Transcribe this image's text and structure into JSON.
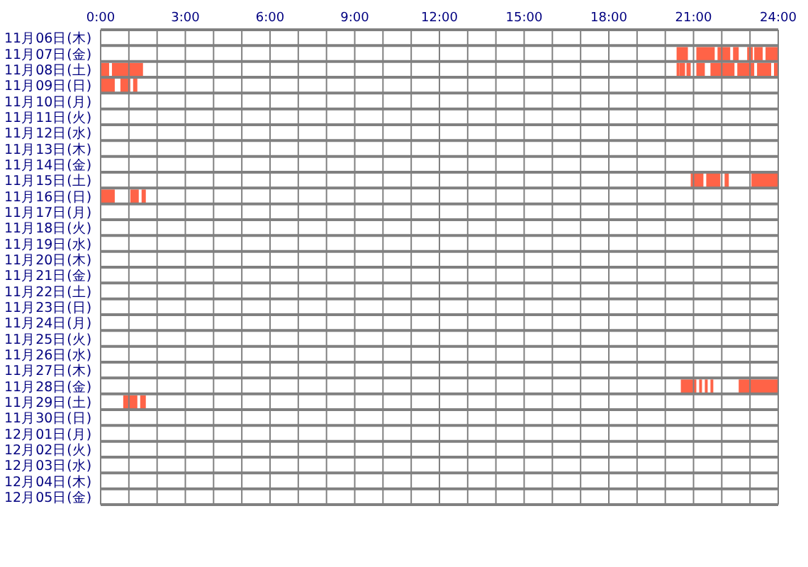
{
  "chart_data": {
    "type": "bar",
    "orientation": "horizontal",
    "grid": true,
    "categories": [
      "11月06日(木)",
      "11月07日(金)",
      "11月08日(土)",
      "11月09日(日)",
      "11月10日(月)",
      "11月11日(火)",
      "11月12日(水)",
      "11月13日(木)",
      "11月14日(金)",
      "11月15日(土)",
      "11月16日(日)",
      "11月17日(月)",
      "11月18日(火)",
      "11月19日(水)",
      "11月20日(木)",
      "11月21日(金)",
      "11月22日(土)",
      "11月23日(日)",
      "11月24日(月)",
      "11月25日(火)",
      "11月26日(水)",
      "11月27日(木)",
      "11月28日(金)",
      "11月29日(土)",
      "11月30日(日)",
      "12月01日(月)",
      "12月02日(火)",
      "12月03日(水)",
      "12月04日(木)",
      "12月05日(金)"
    ],
    "xlim": [
      0,
      24
    ],
    "xticks": [
      {
        "value": 0,
        "label": "0:00"
      },
      {
        "value": 1,
        "label": null
      },
      {
        "value": 2,
        "label": null
      },
      {
        "value": 3,
        "label": "3:00"
      },
      {
        "value": 4,
        "label": null
      },
      {
        "value": 5,
        "label": null
      },
      {
        "value": 6,
        "label": "6:00"
      },
      {
        "value": 7,
        "label": null
      },
      {
        "value": 8,
        "label": null
      },
      {
        "value": 9,
        "label": "9:00"
      },
      {
        "value": 10,
        "label": null
      },
      {
        "value": 11,
        "label": null
      },
      {
        "value": 12,
        "label": "12:00"
      },
      {
        "value": 13,
        "label": null
      },
      {
        "value": 14,
        "label": null
      },
      {
        "value": 15,
        "label": "15:00"
      },
      {
        "value": 16,
        "label": null
      },
      {
        "value": 17,
        "label": null
      },
      {
        "value": 18,
        "label": "18:00"
      },
      {
        "value": 19,
        "label": null
      },
      {
        "value": 20,
        "label": null
      },
      {
        "value": 21,
        "label": "21:00"
      },
      {
        "value": 22,
        "label": null
      },
      {
        "value": 23,
        "label": null
      },
      {
        "value": 24,
        "label": "24:00"
      }
    ],
    "series": [
      {
        "color": "#ff6347",
        "base": [
          null,
          20.4,
          0,
          0,
          null,
          null,
          null,
          null,
          null,
          20.9,
          0,
          null,
          null,
          null,
          null,
          null,
          null,
          null,
          null,
          null,
          null,
          null,
          20.55,
          0.8,
          null,
          null,
          null,
          null,
          null,
          null
        ],
        "values": [
          null,
          0.4,
          0.3,
          0.5,
          null,
          null,
          null,
          null,
          null,
          0.45,
          0.5,
          null,
          null,
          null,
          null,
          null,
          null,
          null,
          null,
          null,
          null,
          null,
          0.55,
          0.5,
          null,
          null,
          null,
          null,
          null,
          null
        ]
      },
      {
        "color": "#ff6347",
        "base": [
          null,
          21.1,
          0.4,
          0.7,
          null,
          null,
          null,
          null,
          null,
          21.45,
          1.05,
          null,
          null,
          null,
          null,
          null,
          null,
          null,
          null,
          null,
          null,
          null,
          21.2,
          1.4,
          null,
          null,
          null,
          null,
          null,
          null
        ],
        "values": [
          null,
          0.65,
          1.1,
          0.35,
          null,
          null,
          null,
          null,
          null,
          0.5,
          0.3,
          null,
          null,
          null,
          null,
          null,
          null,
          null,
          null,
          null,
          null,
          null,
          0.1,
          0.2,
          null,
          null,
          null,
          null,
          null,
          null
        ]
      },
      {
        "color": "#ff6347",
        "base": [
          null,
          21.85,
          20.4,
          1.15,
          null,
          null,
          null,
          null,
          null,
          22.1,
          1.45,
          null,
          null,
          null,
          null,
          null,
          null,
          null,
          null,
          null,
          null,
          null,
          21.4,
          null,
          null,
          null,
          null,
          null,
          null,
          null
        ],
        "values": [
          null,
          0.45,
          0.1,
          0.15,
          null,
          null,
          null,
          null,
          null,
          0.15,
          0.15,
          null,
          null,
          null,
          null,
          null,
          null,
          null,
          null,
          null,
          null,
          null,
          0.1,
          null,
          null,
          null,
          null,
          null,
          null,
          null
        ]
      },
      {
        "color": "#ff6347",
        "base": [
          null,
          22.4,
          20.5,
          null,
          null,
          null,
          null,
          null,
          null,
          23.05,
          null,
          null,
          null,
          null,
          null,
          null,
          null,
          null,
          null,
          null,
          null,
          null,
          21.6,
          null,
          null,
          null,
          null,
          null,
          null,
          null
        ],
        "values": [
          null,
          0.2,
          0.2,
          null,
          null,
          null,
          null,
          null,
          null,
          0.95,
          null,
          null,
          null,
          null,
          null,
          null,
          null,
          null,
          null,
          null,
          null,
          null,
          0.1,
          null,
          null,
          null,
          null,
          null,
          null,
          null
        ]
      },
      {
        "color": "#ff6347",
        "base": [
          null,
          22.9,
          20.75,
          null,
          null,
          null,
          null,
          null,
          null,
          null,
          null,
          null,
          null,
          null,
          null,
          null,
          null,
          null,
          null,
          null,
          null,
          null,
          22.6,
          null,
          null,
          null,
          null,
          null,
          null,
          null
        ],
        "values": [
          null,
          0.2,
          0.15,
          null,
          null,
          null,
          null,
          null,
          null,
          null,
          null,
          null,
          null,
          null,
          null,
          null,
          null,
          null,
          null,
          null,
          null,
          null,
          1.4,
          null,
          null,
          null,
          null,
          null,
          null,
          null
        ]
      },
      {
        "color": "#ff6347",
        "base": [
          null,
          23.15,
          21.1,
          null,
          null,
          null,
          null,
          null,
          null,
          null,
          null,
          null,
          null,
          null,
          null,
          null,
          null,
          null,
          null,
          null,
          null,
          null,
          null,
          null,
          null,
          null,
          null,
          null,
          null,
          null
        ],
        "values": [
          null,
          0.3,
          0.3,
          null,
          null,
          null,
          null,
          null,
          null,
          null,
          null,
          null,
          null,
          null,
          null,
          null,
          null,
          null,
          null,
          null,
          null,
          null,
          null,
          null,
          null,
          null,
          null,
          null,
          null,
          null
        ]
      },
      {
        "color": "#ff6347",
        "base": [
          null,
          23.55,
          21.6,
          null,
          null,
          null,
          null,
          null,
          null,
          null,
          null,
          null,
          null,
          null,
          null,
          null,
          null,
          null,
          null,
          null,
          null,
          null,
          null,
          null,
          null,
          null,
          null,
          null,
          null,
          null
        ],
        "values": [
          null,
          0.45,
          0.85,
          null,
          null,
          null,
          null,
          null,
          null,
          null,
          null,
          null,
          null,
          null,
          null,
          null,
          null,
          null,
          null,
          null,
          null,
          null,
          null,
          null,
          null,
          null,
          null,
          null,
          null,
          null
        ]
      },
      {
        "color": "#ff6347",
        "base": [
          null,
          null,
          22.55,
          null,
          null,
          null,
          null,
          null,
          null,
          null,
          null,
          null,
          null,
          null,
          null,
          null,
          null,
          null,
          null,
          null,
          null,
          null,
          null,
          null,
          null,
          null,
          null,
          null,
          null,
          null
        ],
        "values": [
          null,
          null,
          0.6,
          null,
          null,
          null,
          null,
          null,
          null,
          null,
          null,
          null,
          null,
          null,
          null,
          null,
          null,
          null,
          null,
          null,
          null,
          null,
          null,
          null,
          null,
          null,
          null,
          null,
          null,
          null
        ]
      },
      {
        "color": "#ff6347",
        "base": [
          null,
          null,
          23.25,
          null,
          null,
          null,
          null,
          null,
          null,
          null,
          null,
          null,
          null,
          null,
          null,
          null,
          null,
          null,
          null,
          null,
          null,
          null,
          null,
          null,
          null,
          null,
          null,
          null,
          null,
          null
        ],
        "values": [
          null,
          null,
          0.5,
          null,
          null,
          null,
          null,
          null,
          null,
          null,
          null,
          null,
          null,
          null,
          null,
          null,
          null,
          null,
          null,
          null,
          null,
          null,
          null,
          null,
          null,
          null,
          null,
          null,
          null,
          null
        ]
      },
      {
        "color": "#ff6347",
        "base": [
          null,
          null,
          23.85,
          null,
          null,
          null,
          null,
          null,
          null,
          null,
          null,
          null,
          null,
          null,
          null,
          null,
          null,
          null,
          null,
          null,
          null,
          null,
          null,
          null,
          null,
          null,
          null,
          null,
          null,
          null
        ],
        "values": [
          null,
          null,
          0.15,
          null,
          null,
          null,
          null,
          null,
          null,
          null,
          null,
          null,
          null,
          null,
          null,
          null,
          null,
          null,
          null,
          null,
          null,
          null,
          null,
          null,
          null,
          null,
          null,
          null,
          null,
          null
        ]
      }
    ]
  }
}
